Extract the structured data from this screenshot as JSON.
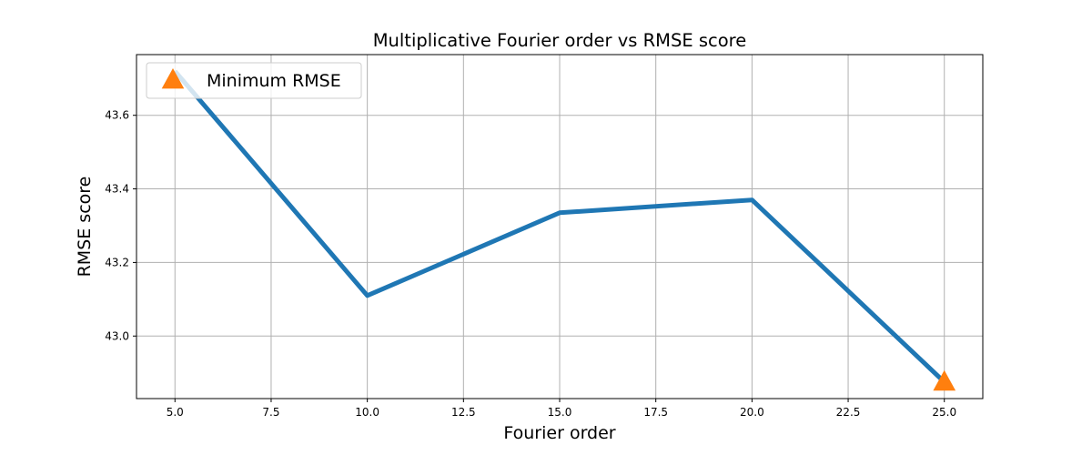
{
  "chart_data": {
    "type": "line",
    "title": "Multiplicative Fourier order vs RMSE score",
    "xlabel": "Fourier order",
    "ylabel": "RMSE score",
    "x": [
      5,
      10,
      15,
      20,
      25
    ],
    "series": [
      {
        "values": [
          43.72,
          43.11,
          43.335,
          43.37,
          42.875
        ],
        "color": "#1f77b4"
      }
    ],
    "marker": {
      "name": "Minimum RMSE",
      "x": 25,
      "y": 42.875,
      "shape": "triangle",
      "color": "#ff7f0e"
    },
    "xlim": [
      4.0,
      26.0
    ],
    "ylim": [
      42.83,
      43.765
    ],
    "xticks": [
      5.0,
      7.5,
      10.0,
      12.5,
      15.0,
      17.5,
      20.0,
      22.5,
      25.0
    ],
    "xtick_labels": [
      "5.0",
      "7.5",
      "10.0",
      "12.5",
      "15.0",
      "17.5",
      "20.0",
      "22.5",
      "25.0"
    ],
    "yticks": [
      43.0,
      43.2,
      43.4,
      43.6
    ],
    "ytick_labels": [
      "43.0",
      "43.2",
      "43.4",
      "43.6"
    ],
    "grid": true,
    "legend": {
      "position": "top-left",
      "entries": [
        "Minimum RMSE"
      ]
    }
  }
}
